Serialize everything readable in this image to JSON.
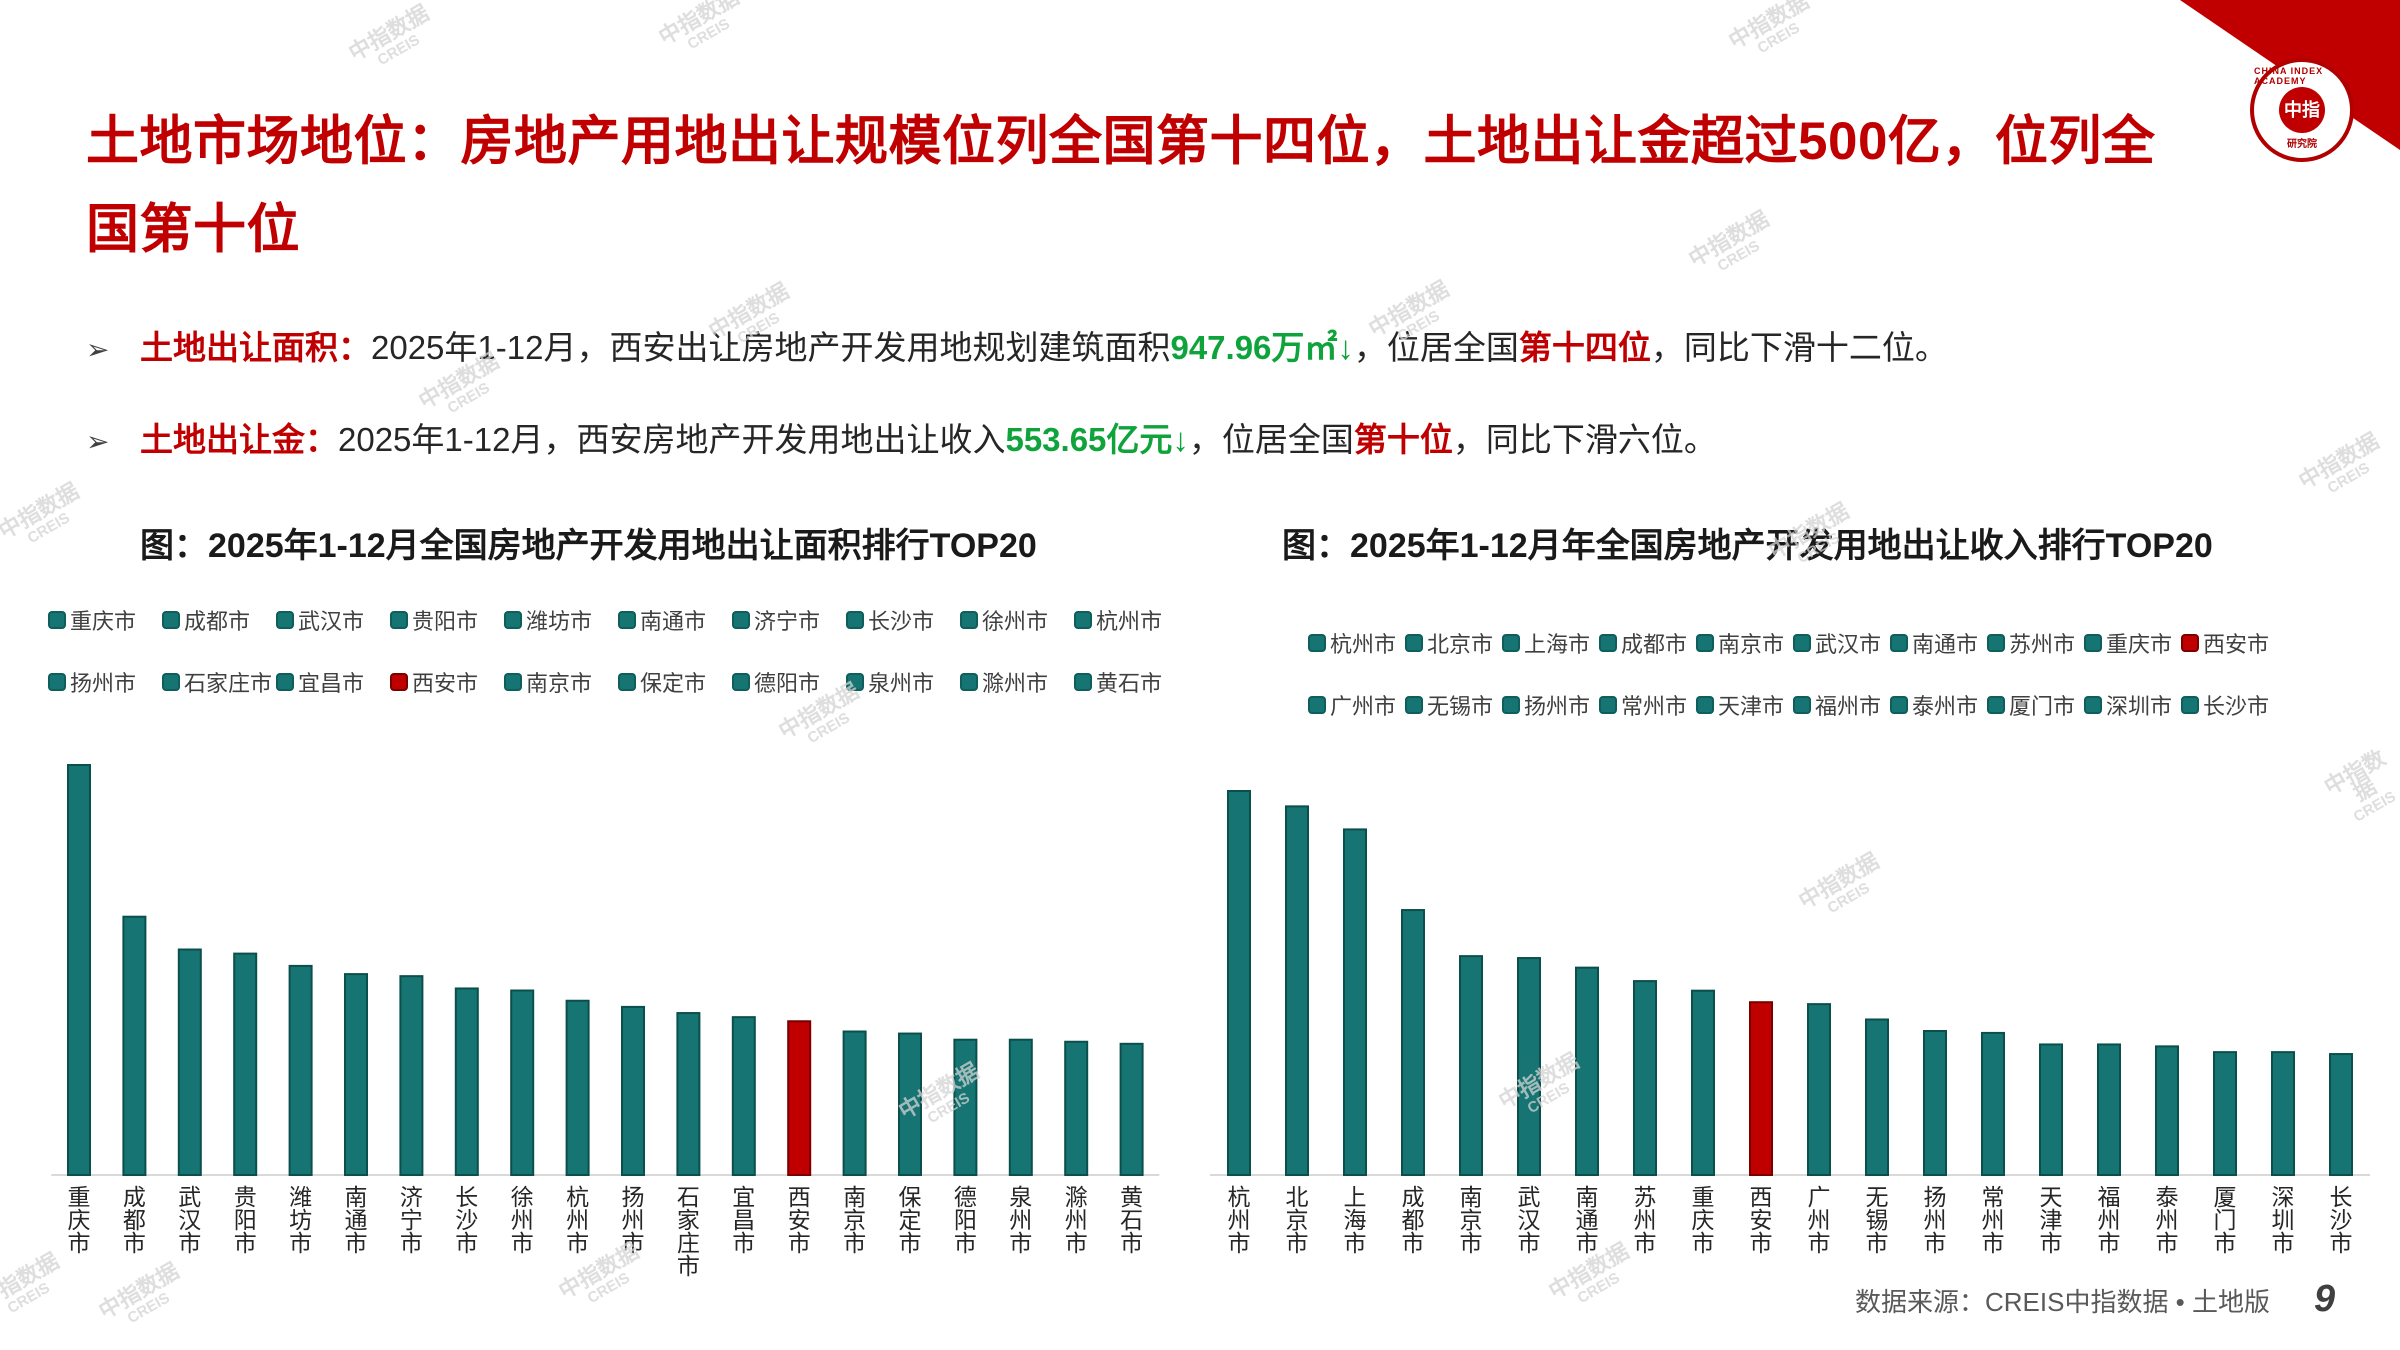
{
  "title": "土地市场地位：房地产用地出让规模位列全国第十四位，土地出让金超过500亿，位列全国第十位",
  "bullets": [
    {
      "key": "土地出让面积：",
      "text1": "2025年1-12月，西安出让房地产开发用地规划建筑面积",
      "value": "947.96万㎡↓",
      "text2": "，位居全国",
      "rank": "第十四位",
      "text3": "，同比下滑十二位。"
    },
    {
      "key": "土地出让金：",
      "text1": "2025年1-12月，西安房地产开发用地出让收入",
      "value": "553.65亿元↓",
      "text2": "，位居全国",
      "rank": "第十位",
      "text3": "，同比下滑六位。"
    }
  ],
  "colors": {
    "bar": "#167472",
    "highlight": "#c00000",
    "title": "#c00000",
    "green": "#0fa33c"
  },
  "watermark": {
    "cn": "中指数据",
    "en": "CREIS"
  },
  "logo": {
    "center": "中指",
    "ring": "CHINA INDEX ACADEMY",
    "sub": "研究院"
  },
  "source": "数据来源：CREIS中指数据 • 土地版",
  "page_number": "9",
  "chart_data": [
    {
      "type": "bar",
      "title": "图：2025年1-12月全国房地产开发用地出让面积排行TOP20",
      "categories": [
        "重庆市",
        "成都市",
        "武汉市",
        "贵阳市",
        "潍坊市",
        "南通市",
        "济宁市",
        "长沙市",
        "徐州市",
        "杭州市",
        "扬州市",
        "石家庄市",
        "宜昌市",
        "西安市",
        "南京市",
        "保定市",
        "德阳市",
        "泉州市",
        "滁州市",
        "黄石市"
      ],
      "values": [
        100,
        63,
        55,
        54,
        51,
        49,
        48.5,
        45.5,
        45,
        42.5,
        41,
        39.5,
        38.5,
        37.5,
        35,
        34.5,
        33,
        33,
        32.5,
        32
      ],
      "highlight": "西安市",
      "legend_position": "top"
    },
    {
      "type": "bar",
      "title": "图：2025年1-12月年全国房地产开发用地出让收入排行TOP20",
      "categories": [
        "杭州市",
        "北京市",
        "上海市",
        "成都市",
        "南京市",
        "武汉市",
        "南通市",
        "苏州市",
        "重庆市",
        "西安市",
        "广州市",
        "无锡市",
        "扬州市",
        "常州市",
        "天津市",
        "福州市",
        "泰州市",
        "厦门市",
        "深圳市",
        "长沙市"
      ],
      "values": [
        100,
        96,
        90,
        69,
        57,
        56.5,
        54,
        50.5,
        48,
        45,
        44.5,
        40.5,
        37.5,
        37,
        34,
        34,
        33.5,
        32,
        32,
        31.5
      ],
      "highlight": "西安市",
      "legend_position": "top"
    }
  ]
}
